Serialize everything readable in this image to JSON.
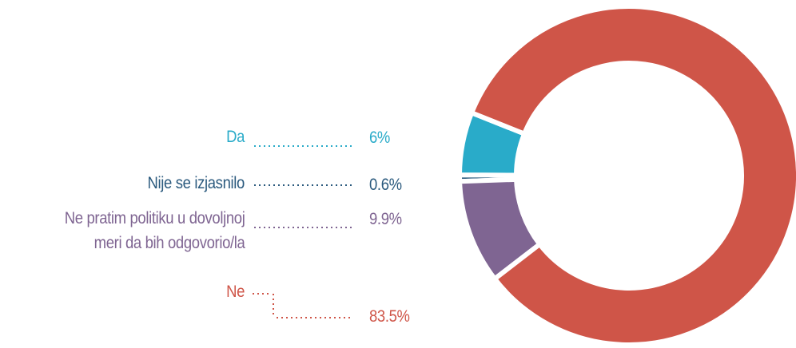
{
  "chart_data": {
    "type": "donut",
    "series": [
      {
        "name": "Da",
        "color": "#29abc9",
        "values": [
          6
        ],
        "value_labels": [
          "6%"
        ]
      },
      {
        "name": "Nije se izjasnilo",
        "color": "#2b5a7e",
        "values": [
          0.6
        ],
        "value_labels": [
          "0.6%"
        ]
      },
      {
        "name": "Ne pratim politiku u dovoljnoj\nmeri da bih odgovorio/la",
        "color": "#7f6592",
        "values": [
          9.9
        ],
        "value_labels": [
          "9.9%"
        ]
      },
      {
        "name": "Ne",
        "color": "#cf5548",
        "values": [
          83.5
        ],
        "value_labels": [
          "83.5%"
        ]
      }
    ]
  }
}
